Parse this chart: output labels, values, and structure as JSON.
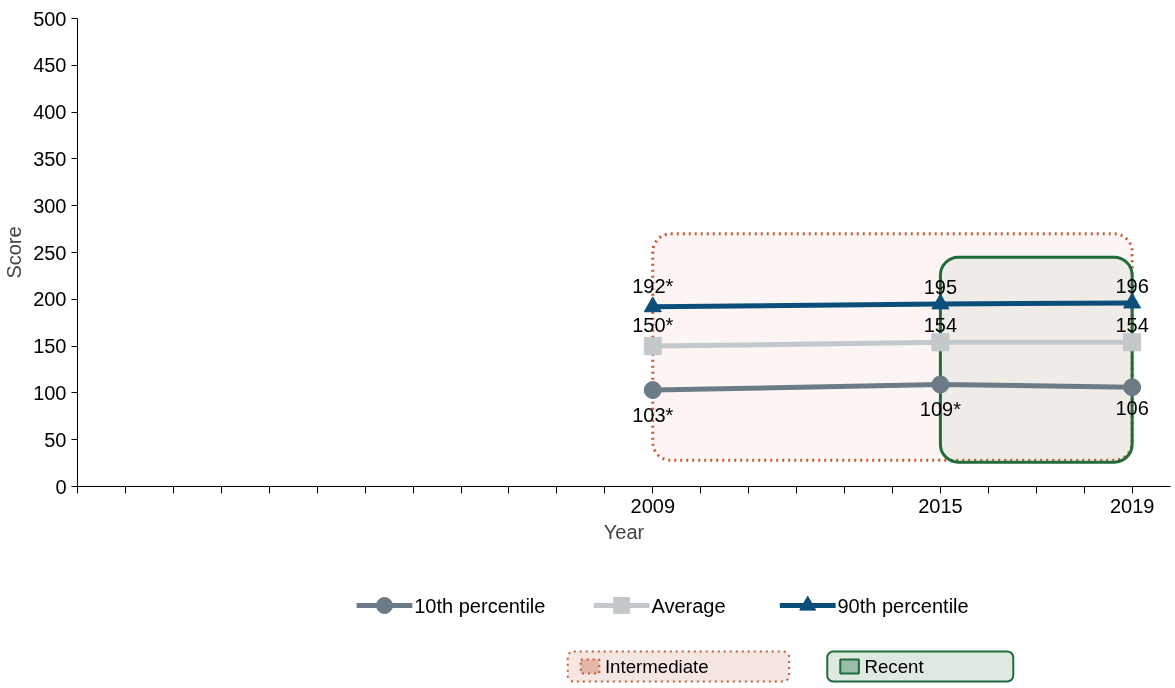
{
  "chart_data": {
    "type": "line",
    "xlabel": "Year",
    "ylabel": "Score",
    "x": [
      2009,
      2015,
      2019
    ],
    "xlim": [
      1997,
      2019.8
    ],
    "xticks": [
      {
        "value": 1997,
        "label": null
      },
      {
        "value": 1998,
        "label": null
      },
      {
        "value": 1999,
        "label": null
      },
      {
        "value": 2000,
        "label": null
      },
      {
        "value": 2001,
        "label": null
      },
      {
        "value": 2002,
        "label": null
      },
      {
        "value": 2003,
        "label": null
      },
      {
        "value": 2004,
        "label": null
      },
      {
        "value": 2005,
        "label": null
      },
      {
        "value": 2006,
        "label": null
      },
      {
        "value": 2007,
        "label": null
      },
      {
        "value": 2008,
        "label": null
      },
      2009,
      {
        "value": 2010,
        "label": null
      },
      {
        "value": 2011,
        "label": null
      },
      {
        "value": 2012,
        "label": null
      },
      {
        "value": 2013,
        "label": null
      },
      {
        "value": 2014,
        "label": null
      },
      2015,
      {
        "value": 2016,
        "label": null
      },
      {
        "value": 2017,
        "label": null
      },
      {
        "value": 2018,
        "label": null
      },
      2019
    ],
    "ylim": [
      0,
      500
    ],
    "yticks": [
      0,
      50,
      100,
      150,
      200,
      250,
      300,
      350,
      400,
      450,
      500
    ],
    "series": [
      {
        "name": "10th percentile",
        "color": "#6d7b86",
        "marker": "circle",
        "values": [
          103,
          109,
          106
        ],
        "value_labels": [
          "103*",
          "109*",
          "106"
        ]
      },
      {
        "name": "Average",
        "color": "#c3c8cb",
        "marker": "square",
        "values": [
          150,
          154,
          154
        ],
        "value_labels": [
          "150*",
          "154",
          "154"
        ]
      },
      {
        "name": "90th percentile",
        "color": "#0b4e7a",
        "marker": "triangle",
        "values": [
          192,
          195,
          196
        ],
        "value_labels": [
          "192*",
          "195",
          "196"
        ]
      }
    ],
    "bands": [
      {
        "axis": "x",
        "from": 2009,
        "to": 2019,
        "label": "Intermediate",
        "color": "#c55a3b"
      },
      {
        "axis": "x",
        "from": 2015,
        "to": 2019,
        "label": "Recent",
        "color": "#1f6b3a"
      }
    ],
    "legend": "bottom",
    "grid": false,
    "line_style": "solid"
  }
}
